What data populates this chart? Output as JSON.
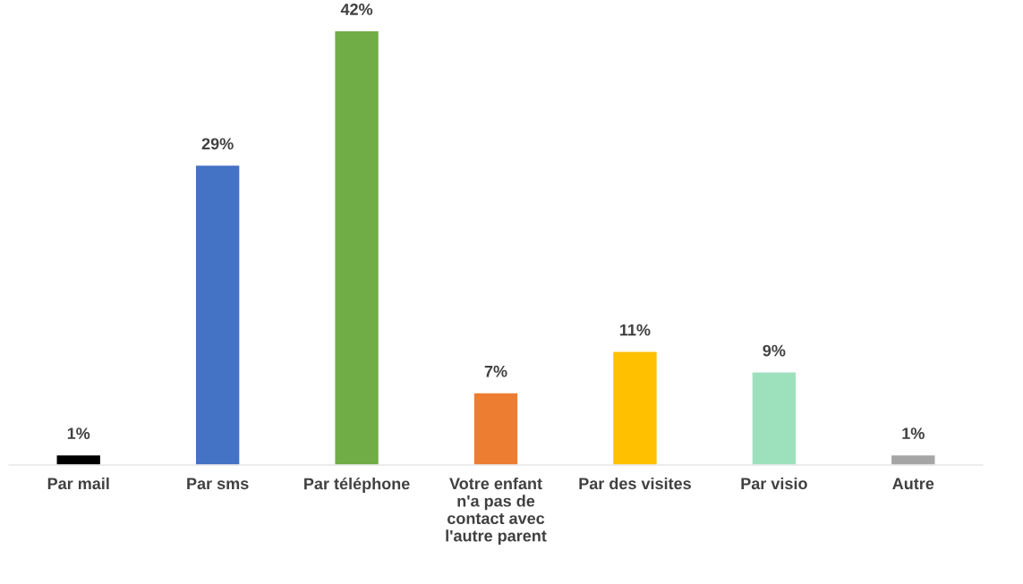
{
  "chart_data": {
    "type": "bar",
    "categories": [
      "Par mail",
      "Par sms",
      "Par téléphone",
      "Votre enfant\nn'a pas de\ncontact avec\nl'autre parent",
      "Par des visites",
      "Par visio",
      "Autre"
    ],
    "values": [
      1,
      29,
      42,
      7,
      11,
      9,
      1
    ],
    "colors": [
      "#000000",
      "#4472c4",
      "#70ad47",
      "#ed7d31",
      "#ffc000",
      "#9de0bc",
      "#a5a5a5"
    ],
    "value_labels": [
      "1%",
      "29%",
      "42%",
      "7%",
      "11%",
      "9%",
      "1%"
    ],
    "grid": false,
    "legend": false
  }
}
